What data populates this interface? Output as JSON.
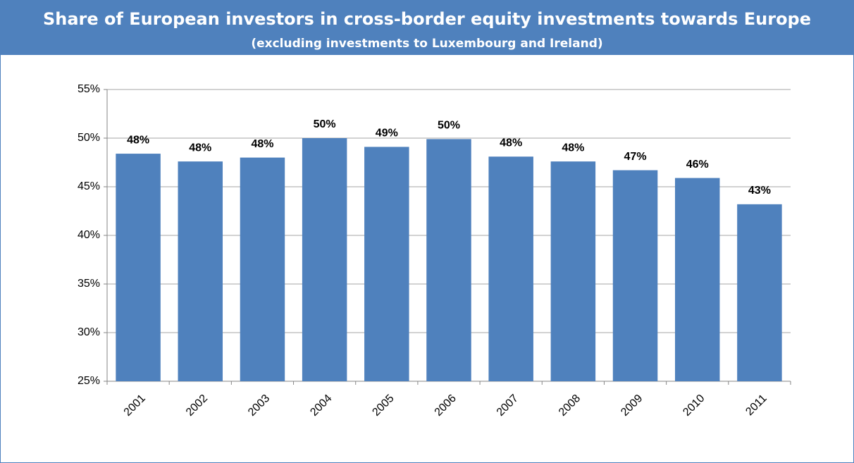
{
  "chart_data": {
    "type": "bar",
    "title": "Share of European investors in cross-border equity investments towards Europe",
    "subtitle": "(excluding investments to Luxembourg and Ireland)",
    "categories": [
      "2001",
      "2002",
      "2003",
      "2004",
      "2005",
      "2006",
      "2007",
      "2008",
      "2009",
      "2010",
      "2011"
    ],
    "values": [
      48.4,
      47.6,
      48.0,
      50.0,
      49.1,
      49.9,
      48.1,
      47.6,
      46.7,
      45.9,
      43.2
    ],
    "value_labels": [
      "48%",
      "48%",
      "48%",
      "50%",
      "49%",
      "50%",
      "48%",
      "48%",
      "47%",
      "46%",
      "43%"
    ],
    "color": "#4f81bd",
    "ylim": [
      25,
      55
    ],
    "yticks": [
      {
        "value": 25,
        "label": "25%"
      },
      {
        "value": 30,
        "label": "30%"
      },
      {
        "value": 35,
        "label": "35%"
      },
      {
        "value": 40,
        "label": "40%"
      },
      {
        "value": 45,
        "label": "45%"
      },
      {
        "value": 50,
        "label": "50%"
      },
      {
        "value": 55,
        "label": "55%"
      }
    ],
    "grid": true
  }
}
